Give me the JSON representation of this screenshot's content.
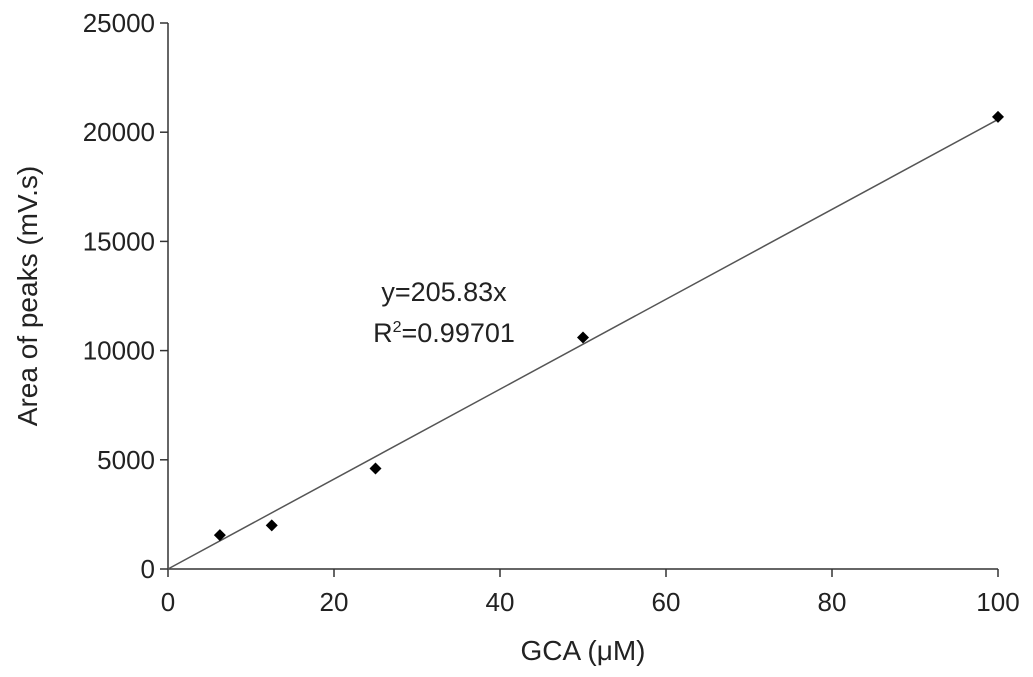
{
  "chart_data": {
    "type": "scatter",
    "title": "",
    "xlabel": "GCA (μM)",
    "ylabel": "Area of peaks (mV.s)",
    "xlim": [
      0,
      100
    ],
    "ylim": [
      0,
      25000
    ],
    "x_ticks": [
      0,
      20,
      40,
      60,
      80,
      100
    ],
    "y_ticks": [
      0,
      5000,
      10000,
      15000,
      20000,
      25000
    ],
    "grid": false,
    "legend": "none",
    "series": [
      {
        "x": [
          6.25,
          12.5,
          25,
          50,
          100
        ],
        "y": [
          1550,
          2000,
          4600,
          10600,
          20700
        ],
        "marker": "diamond",
        "color": "#000000"
      }
    ],
    "trendline": {
      "slope": 205.83,
      "intercept": 0,
      "x_range": [
        0,
        100
      ],
      "color": "#555555"
    },
    "annotations": {
      "equation": "y=205.83x",
      "r2_prefix": "R",
      "r2_exp": "2",
      "r2_value": "=0.99701"
    }
  }
}
